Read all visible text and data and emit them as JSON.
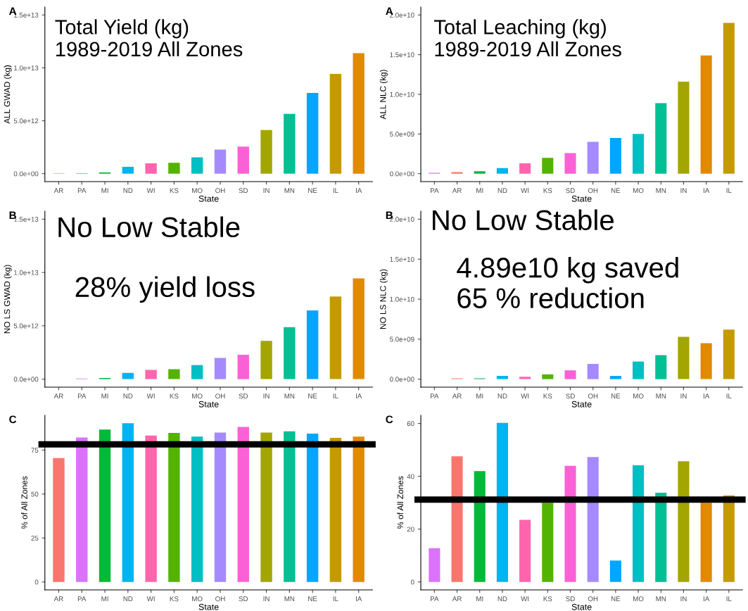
{
  "chart_data": [
    {
      "type": "bar",
      "title": "A",
      "xlabel": "State",
      "ylabel": "ALL GWAD (kg)",
      "categories": [
        "AR",
        "PA",
        "MI",
        "ND",
        "WI",
        "KS",
        "MO",
        "OH",
        "SD",
        "IN",
        "MN",
        "NE",
        "IL",
        "IA"
      ],
      "values": [
        30000000000.0,
        50000000000.0,
        110000000000.0,
        640000000000.0,
        980000000000.0,
        1030000000000.0,
        1550000000000.0,
        2280000000000.0,
        2560000000000.0,
        4130000000000.0,
        5660000000000.0,
        7630000000000.0,
        9430000000000.0,
        11390000000000.0
      ],
      "colors": [
        "#F8766D",
        "#DB72FB",
        "#00BA38",
        "#00B4EF",
        "#FF65AC",
        "#53B400",
        "#00BFC4",
        "#A58AFF",
        "#FB61D7",
        "#A3A500",
        "#00C094",
        "#00A6FF",
        "#C49A00",
        "#E18A00"
      ],
      "ylim": [
        -750000000000.0,
        15750000000000.0
      ],
      "yticks": [
        {
          "value": 0,
          "label": "0.0e+00"
        },
        {
          "value": 5000000000000.0,
          "label": "5.0e+12"
        },
        {
          "value": 10000000000000.0,
          "label": "1.0e+13"
        },
        {
          "value": 15000000000000.0,
          "label": "1.5e+13"
        }
      ],
      "annotations": [
        "Total Yield (kg)\n1989-2019 All Zones"
      ]
    },
    {
      "type": "bar",
      "title": "A",
      "xlabel": "State",
      "ylabel": "ALL NLC (kg)",
      "categories": [
        "PA",
        "AR",
        "MI",
        "ND",
        "WI",
        "KS",
        "SD",
        "OH",
        "NE",
        "MO",
        "MN",
        "IN",
        "IA",
        "IL"
      ],
      "values": [
        100000000.0,
        200000000.0,
        300000000.0,
        700000000.0,
        1300000000.0,
        2000000000.0,
        2600000000.0,
        4000000000.0,
        4500000000.0,
        5000000000.0,
        8900000000.0,
        11600000000.0,
        14900000000.0,
        19000000000.0
      ],
      "colors": [
        "#DB72FB",
        "#F8766D",
        "#00BA38",
        "#00B4EF",
        "#FF65AC",
        "#53B400",
        "#FB61D7",
        "#A58AFF",
        "#00A6FF",
        "#00BFC4",
        "#00C094",
        "#A3A500",
        "#E18A00",
        "#C49A00"
      ],
      "ylim": [
        -1000000000.0,
        21000000000.0
      ],
      "yticks": [
        {
          "value": 0,
          "label": "0.0e+00"
        },
        {
          "value": 5000000000.0,
          "label": "5.0e+09"
        },
        {
          "value": 10000000000.0,
          "label": "1.0e+10"
        },
        {
          "value": 15000000000.0,
          "label": "1.5e+10"
        },
        {
          "value": 20000000000.0,
          "label": "2.0e+10"
        }
      ],
      "annotations": [
        "Total Leaching (kg)\n1989-2019 All Zones"
      ]
    },
    {
      "type": "bar",
      "title": "B",
      "xlabel": "State",
      "ylabel": "NO LS GWAD (kg)",
      "categories": [
        "AR",
        "PA",
        "MI",
        "ND",
        "WI",
        "KS",
        "MO",
        "OH",
        "SD",
        "IN",
        "MN",
        "NE",
        "IL",
        "IA"
      ],
      "values": [
        null,
        50000000000.0,
        110000000000.0,
        590000000000.0,
        870000000000.0,
        930000000000.0,
        1320000000000.0,
        1980000000000.0,
        2280000000000.0,
        3580000000000.0,
        4870000000000.0,
        6450000000000.0,
        7740000000000.0,
        9450000000000.0
      ],
      "colors": [
        "#F8766D",
        "#DB72FB",
        "#00BA38",
        "#00B4EF",
        "#FF65AC",
        "#53B400",
        "#00BFC4",
        "#A58AFF",
        "#FB61D7",
        "#A3A500",
        "#00C094",
        "#00A6FF",
        "#C49A00",
        "#E18A00"
      ],
      "ylim": [
        -750000000000.0,
        15750000000000.0
      ],
      "yticks": [
        {
          "value": 0,
          "label": "0.0e+00"
        },
        {
          "value": 5000000000000.0,
          "label": "5.0e+12"
        },
        {
          "value": 10000000000000.0,
          "label": "1.0e+13"
        },
        {
          "value": 15000000000000.0,
          "label": "1.5e+13"
        }
      ],
      "annotations": [
        "No Low Stable",
        "28% yield loss"
      ]
    },
    {
      "type": "bar",
      "title": "B",
      "xlabel": "State",
      "ylabel": "NO LS NLC (kg)",
      "categories": [
        "PA",
        "AR",
        "MI",
        "ND",
        "WI",
        "KS",
        "SD",
        "OH",
        "NE",
        "MO",
        "MN",
        "IN",
        "IA",
        "IL"
      ],
      "values": [
        null,
        100000000.0,
        100000000.0,
        400000000.0,
        300000000.0,
        600000000.0,
        1100000000.0,
        1900000000.0,
        400000000.0,
        2200000000.0,
        3000000000.0,
        5300000000.0,
        4500000000.0,
        6200000000.0
      ],
      "colors": [
        "#DB72FB",
        "#F8766D",
        "#00BA38",
        "#00B4EF",
        "#FF65AC",
        "#53B400",
        "#FB61D7",
        "#A58AFF",
        "#00A6FF",
        "#00BFC4",
        "#00C094",
        "#A3A500",
        "#E18A00",
        "#C49A00"
      ],
      "ylim": [
        -1000000000.0,
        21000000000.0
      ],
      "yticks": [
        {
          "value": 0,
          "label": "0.0e+00"
        },
        {
          "value": 5000000000.0,
          "label": "5.0e+09"
        },
        {
          "value": 10000000000.0,
          "label": "1.0e+10"
        },
        {
          "value": 15000000000.0,
          "label": "1.5e+10"
        },
        {
          "value": 20000000000.0,
          "label": "2.0e+10"
        }
      ],
      "annotations": [
        "No Low Stable",
        "4.89e10 kg saved\n65 % reduction"
      ]
    },
    {
      "type": "bar",
      "title": "C",
      "xlabel": "State",
      "ylabel": "% of All Zones",
      "categories": [
        "AR",
        "PA",
        "MI",
        "ND",
        "WI",
        "KS",
        "MO",
        "OH",
        "SD",
        "IN",
        "MN",
        "NE",
        "IL",
        "IA"
      ],
      "values": [
        70.5,
        82.2,
        86.7,
        90.3,
        83.3,
        84.8,
        82.7,
        85.0,
        88.2,
        85.0,
        85.7,
        84.4,
        82.0,
        82.7
      ],
      "colors": [
        "#F8766D",
        "#DB72FB",
        "#00BA38",
        "#00B4EF",
        "#FF65AC",
        "#53B400",
        "#00BFC4",
        "#A58AFF",
        "#FB61D7",
        "#A3A500",
        "#00C094",
        "#00A6FF",
        "#C49A00",
        "#E18A00"
      ],
      "ylim": [
        -4.5,
        94.8
      ],
      "yticks": [
        0,
        25,
        50,
        75
      ],
      "ref_lines": [
        {
          "axis": "y",
          "value": 78.3,
          "color": "#000000"
        }
      ]
    },
    {
      "type": "bar",
      "title": "C",
      "xlabel": "State",
      "ylabel": "% of All Zones",
      "categories": [
        "PA",
        "AR",
        "MI",
        "ND",
        "WI",
        "KS",
        "SD",
        "OH",
        "NE",
        "MO",
        "MN",
        "IN",
        "IA",
        "IL"
      ],
      "values": [
        12.8,
        47.6,
        42.0,
        60.2,
        23.5,
        30.0,
        44.0,
        47.3,
        8.1,
        44.2,
        33.8,
        45.7,
        30.0,
        32.8
      ],
      "colors": [
        "#DB72FB",
        "#F8766D",
        "#00BA38",
        "#00B4EF",
        "#FF65AC",
        "#53B400",
        "#FB61D7",
        "#A58AFF",
        "#00A6FF",
        "#00BFC4",
        "#00C094",
        "#A3A500",
        "#E18A00",
        "#C49A00"
      ],
      "ylim": [
        -3.0,
        63.1
      ],
      "yticks": [
        0,
        20,
        40,
        60
      ],
      "ref_lines": [
        {
          "axis": "y",
          "value": 31.2,
          "color": "#000000"
        }
      ]
    }
  ]
}
